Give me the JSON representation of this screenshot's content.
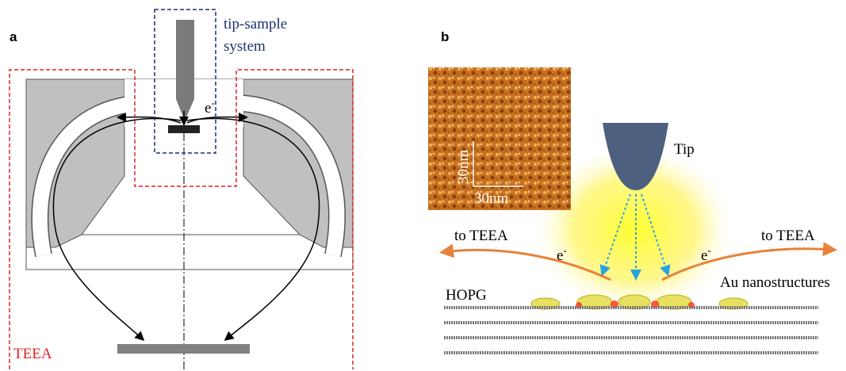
{
  "panel_a": {
    "label": "a",
    "tip_sample_label": [
      "tip-sample",
      "system"
    ],
    "electron": {
      "base": "e",
      "sup": "-"
    },
    "teea_label": "TEEA"
  },
  "panel_b": {
    "label": "b",
    "scale_labels": [
      "30nm",
      "30nm"
    ],
    "tip_label": "Tip",
    "to_teea": [
      "to TEEA",
      "to TEEA"
    ],
    "electrons": [
      {
        "base": "e",
        "sup": "-"
      },
      {
        "base": "e",
        "sup": "-"
      }
    ],
    "substrate_label": "HOPG",
    "particles_label": "Au nanostructures"
  }
}
